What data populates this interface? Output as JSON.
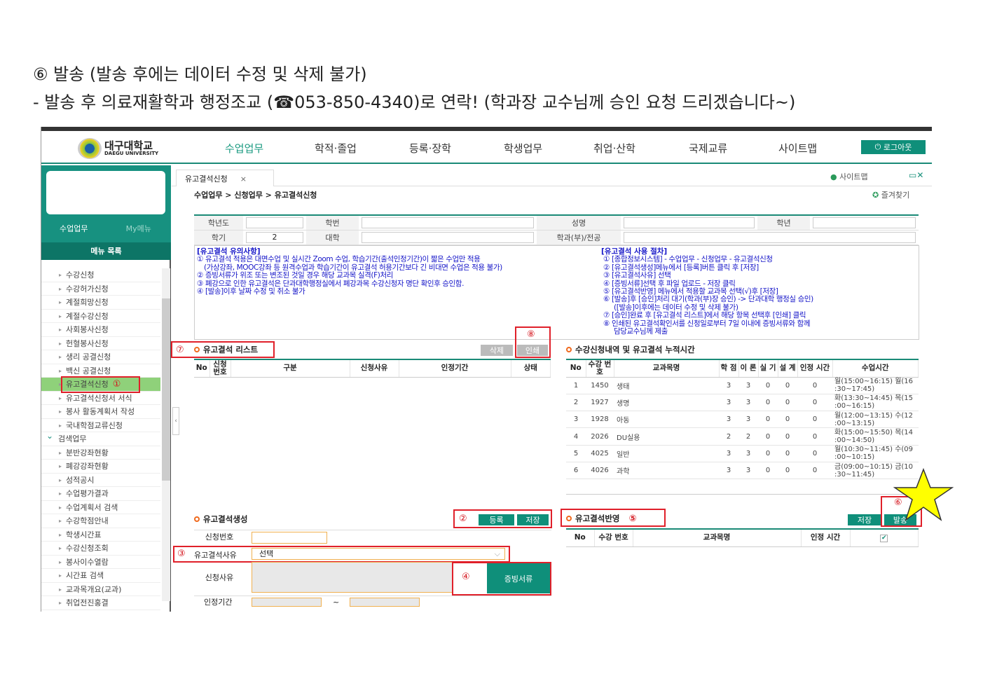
{
  "doc": {
    "line1": "⑥ 발송 (발송 후에는 데이터 수정 및 삭제 불가)",
    "line2": "- 발송 후 의료재활학과 행정조교 (☎053-850-4340)로 연락! (학과장 교수님께 승인 요청 드리겠습니다~)"
  },
  "header": {
    "logo_kr": "대구대학교",
    "logo_en": "DAEGU UNIVERSITY",
    "nav": [
      "수업업무",
      "학적·졸업",
      "등록·장학",
      "학생업무",
      "취업·산학",
      "국제교류",
      "사이트맵"
    ],
    "logout": "로그아웃",
    "accent": "#179180"
  },
  "sidebar": {
    "tabs": [
      "수업업무",
      "My메뉴"
    ],
    "menu_title": "메뉴 목록",
    "items": [
      "수강신청",
      "수강허가신청",
      "계절희망신청",
      "계절수강신청",
      "사회봉사신청",
      "헌혈봉사신청",
      "생리 공결신청",
      "백신 공결신청",
      "유고결석신청",
      "유고결석신청서 서식",
      "봉사 활동계획서 작성",
      "국내학점교류신청",
      "검색업무",
      "분반강좌현황",
      "폐강강좌현황",
      "성적공시",
      "수업평가결과",
      "수업계획서 검색",
      "수강학점안내",
      "학생시간표",
      "수강신청조회",
      "봉사이수열람",
      "시간표 검색",
      "교과목개요(교과)",
      "취업전진홍결"
    ],
    "selected": "유고결석신청",
    "marker": "①"
  },
  "tab": {
    "label": "유고결석신청",
    "close": "×"
  },
  "breadcrumb": "수업업무 > 신청업무 > 유고결석신청",
  "top_links": {
    "sitemap": "사이트맵",
    "favorites": "즐겨찾기"
  },
  "info": {
    "year_label": "학년도",
    "id_label": "학번",
    "name_label": "성명",
    "grade_label": "학년",
    "term_label": "학기",
    "term_value": "2",
    "college_label": "대학",
    "dept_label": "학과(부)/전공"
  },
  "notice_left": {
    "title": "[유고결석 유의사항]",
    "lines": [
      "① 유고결석 적용은 대면수업 및 실시간 Zoom 수업, 학습기간(출석인정기간)이 짧은 수업만 적용",
      "(가상강좌, MOOC강좌 등 원격수업과 학습기간이 유고결석 허용기간보다 긴 비대면 수업은 적용 불가)",
      "② 증빙서류가 위조 또는 변조된 것일 경우 해당 교과목 실격(F)처리",
      "③ 폐강으로 인한 유고결석은 단과대학행정실에서 폐강과목 수강신청자 명단 확인후 승인함.",
      "④ [발송]이후 날짜 수정 및 취소 불가"
    ]
  },
  "notice_right": {
    "title": "[유고결석 사용 절차]",
    "lines": [
      "① [종합정보시스템] - 수업업무 - 신청업무 - 유고결석신청",
      "② [유고결석생성]메뉴에서 [등록]버튼 클릭 후 [저장]",
      "③ [유고결석사유] 선택",
      "④ [증빙서류]선택 후 파일 업로드 - 저장 클릭",
      "⑤ [유고결석반영] 메뉴에서 적용할 교과목 선택(√)후 [저장]",
      "⑥ [발송]후 [승인]처리 대기(학과(부)장 승인) -> 단과대학 행정실 승인)",
      "([발송]이후에는 데이터 수정 및 삭제 불가)",
      "⑦ [승인]완료 후 [유고결석 리스트]에서 해당 항목 선택후 [인쇄] 클릭",
      "⑧ 인쇄된 유고결석확인서를 신청일로부터 7일 이내에 증빙서류와 함께",
      "담당교수님께 제출"
    ]
  },
  "list": {
    "title": "유고결석 리스트",
    "marker": "⑦",
    "print_marker": "⑧",
    "delete": "삭제",
    "print": "인쇄",
    "columns": [
      "No",
      "신청 번호",
      "구분",
      "신청사유",
      "인정기간",
      "상태"
    ]
  },
  "courses": {
    "title": "수강신청내역 및 유고결석 누적시간",
    "columns": [
      "No",
      "수강 번호",
      "교과목명",
      "학 점",
      "이 론",
      "실 기",
      "설 계",
      "인정 시간",
      "수업시간"
    ],
    "rows": [
      [
        "1",
        "1450",
        "생태",
        "3",
        "3",
        "0",
        "0",
        "0",
        "월(15:00~16:15) 월(16 :30~17:45)"
      ],
      [
        "2",
        "1927",
        "생명",
        "3",
        "3",
        "0",
        "0",
        "0",
        "화(13:30~14:45) 목(15 :00~16:15)"
      ],
      [
        "3",
        "1928",
        "아동",
        "3",
        "3",
        "0",
        "0",
        "0",
        "월(12:00~13:15) 수(12 :00~13:15)"
      ],
      [
        "4",
        "2026",
        "DU실용",
        "2",
        "2",
        "0",
        "0",
        "0",
        "화(15:00~15:50) 목(14 :00~14:50)"
      ],
      [
        "5",
        "4025",
        "일반",
        "3",
        "3",
        "0",
        "0",
        "0",
        "월(10:30~11:45) 수(09 :00~10:15)"
      ],
      [
        "6",
        "4026",
        "과학",
        "3",
        "3",
        "0",
        "0",
        "0",
        "금(09:00~10:15) 금(10 :30~11:45)"
      ]
    ]
  },
  "create": {
    "title": "유고결석생성",
    "marker2": "②",
    "register": "등록",
    "save": "저장",
    "req_no_label": "신청번호",
    "reason_marker": "③",
    "reason_label": "유고결석사유",
    "reason_value": "선택",
    "detail_label": "신청사유",
    "doc_marker": "④",
    "doc_button": "증빙서류",
    "period_label": "인정기간",
    "tilde": "~"
  },
  "apply": {
    "title": "유고결석반영",
    "marker": "⑤",
    "send_marker": "⑥",
    "save": "저장",
    "send": "발송",
    "columns": [
      "No",
      "수강 번호",
      "교과목명",
      "인정 시간"
    ],
    "checked": true
  }
}
